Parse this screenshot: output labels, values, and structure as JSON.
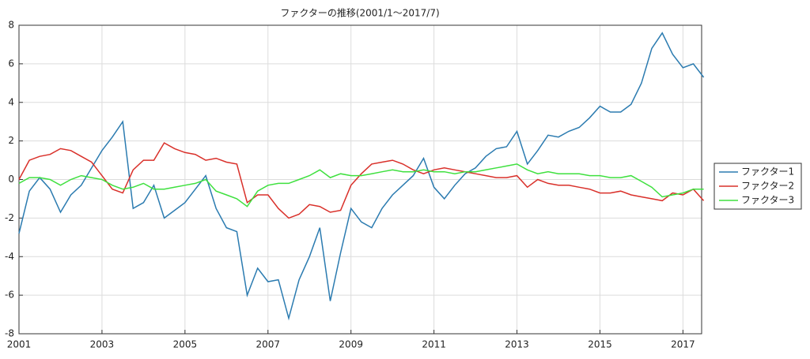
{
  "chart_data": {
    "type": "line",
    "title": "ファクターの推移(2001/1～2017/7)",
    "xlim": [
      2001,
      2017.45
    ],
    "xticks": [
      2001,
      2003,
      2005,
      2007,
      2009,
      2011,
      2013,
      2015,
      2017
    ],
    "ylim": [
      -8,
      8
    ],
    "yticks": [
      -8,
      -6,
      -4,
      -2,
      0,
      2,
      4,
      6,
      8
    ],
    "grid": true,
    "legend": "outside-right",
    "x": [
      2001,
      2001.25,
      2001.5,
      2001.75,
      2002,
      2002.25,
      2002.5,
      2002.75,
      2003,
      2003.25,
      2003.5,
      2003.75,
      2004,
      2004.25,
      2004.5,
      2004.75,
      2005,
      2005.25,
      2005.5,
      2005.75,
      2006,
      2006.25,
      2006.5,
      2006.75,
      2007,
      2007.25,
      2007.5,
      2007.75,
      2008,
      2008.25,
      2008.5,
      2008.75,
      2009,
      2009.25,
      2009.5,
      2009.75,
      2010,
      2010.25,
      2010.5,
      2010.75,
      2011,
      2011.25,
      2011.5,
      2011.75,
      2012,
      2012.25,
      2012.5,
      2012.75,
      2013,
      2013.25,
      2013.5,
      2013.75,
      2014,
      2014.25,
      2014.5,
      2014.75,
      2015,
      2015.25,
      2015.5,
      2015.75,
      2016,
      2016.25,
      2016.5,
      2016.75,
      2017,
      2017.25,
      2017.5
    ],
    "series": [
      {
        "name": "ファクター1",
        "color": "#2b7bb0",
        "values": [
          -2.8,
          -0.6,
          0.1,
          -0.5,
          -1.7,
          -0.8,
          -0.3,
          0.6,
          1.5,
          2.2,
          3.0,
          -1.5,
          -1.2,
          -0.3,
          -2.0,
          -1.6,
          -1.2,
          -0.5,
          0.2,
          -1.5,
          -2.5,
          -2.7,
          -6.0,
          -4.6,
          -5.3,
          -5.2,
          -7.2,
          -5.2,
          -4.0,
          -2.5,
          -6.3,
          -3.8,
          -1.5,
          -2.2,
          -2.5,
          -1.5,
          -0.8,
          -0.3,
          0.2,
          1.1,
          -0.4,
          -1.0,
          -0.3,
          0.3,
          0.6,
          1.2,
          1.6,
          1.7,
          2.5,
          0.8,
          1.5,
          2.3,
          2.2,
          2.5,
          2.7,
          3.2,
          3.8,
          3.5,
          3.5,
          3.9,
          5.0,
          6.8,
          7.6,
          6.5,
          5.8,
          6.0,
          5.3
        ]
      },
      {
        "name": "ファクター2",
        "color": "#d9302a",
        "values": [
          0.0,
          1.0,
          1.2,
          1.3,
          1.6,
          1.5,
          1.2,
          0.9,
          0.2,
          -0.5,
          -0.7,
          0.5,
          1.0,
          1.0,
          1.9,
          1.6,
          1.4,
          1.3,
          1.0,
          1.1,
          0.9,
          0.8,
          -1.2,
          -0.8,
          -0.8,
          -1.5,
          -2.0,
          -1.8,
          -1.3,
          -1.4,
          -1.7,
          -1.6,
          -0.3,
          0.3,
          0.8,
          0.9,
          1.0,
          0.8,
          0.5,
          0.3,
          0.5,
          0.6,
          0.5,
          0.4,
          0.3,
          0.2,
          0.1,
          0.1,
          0.2,
          -0.4,
          0.0,
          -0.2,
          -0.3,
          -0.3,
          -0.4,
          -0.5,
          -0.7,
          -0.7,
          -0.6,
          -0.8,
          -0.9,
          -1.0,
          -1.1,
          -0.7,
          -0.8,
          -0.5,
          -1.1
        ]
      },
      {
        "name": "ファクター3",
        "color": "#3ee03e",
        "values": [
          -0.2,
          0.1,
          0.1,
          0.0,
          -0.3,
          0.0,
          0.2,
          0.1,
          0.0,
          -0.3,
          -0.5,
          -0.4,
          -0.2,
          -0.5,
          -0.5,
          -0.4,
          -0.3,
          -0.2,
          0.0,
          -0.6,
          -0.8,
          -1.0,
          -1.4,
          -0.6,
          -0.3,
          -0.2,
          -0.2,
          0.0,
          0.2,
          0.5,
          0.1,
          0.3,
          0.2,
          0.2,
          0.3,
          0.4,
          0.5,
          0.4,
          0.4,
          0.5,
          0.4,
          0.4,
          0.3,
          0.4,
          0.4,
          0.5,
          0.6,
          0.7,
          0.8,
          0.5,
          0.3,
          0.4,
          0.3,
          0.3,
          0.3,
          0.2,
          0.2,
          0.1,
          0.1,
          0.2,
          -0.1,
          -0.4,
          -0.9,
          -0.8,
          -0.7,
          -0.5,
          -0.5
        ]
      }
    ]
  }
}
